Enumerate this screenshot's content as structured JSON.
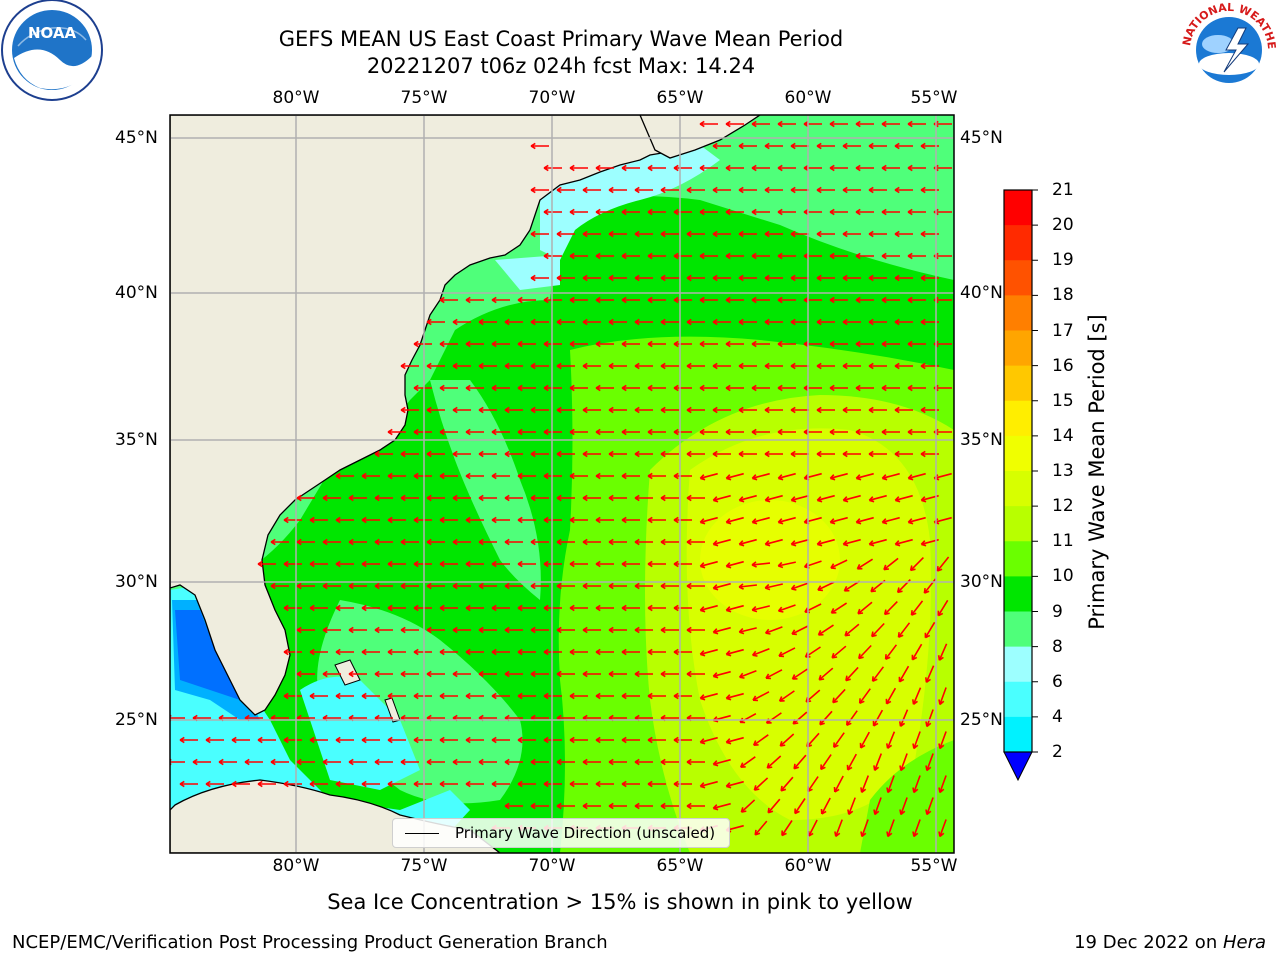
{
  "title_line1": "GEFS MEAN US East Coast Primary Wave Mean Period",
  "title_line2": "20221207 t06z 024h fcst   Max: 14.24",
  "longitude_labels": [
    "80°W",
    "75°W",
    "70°W",
    "65°W",
    "60°W",
    "55°W"
  ],
  "latitude_labels": [
    "45°N",
    "40°N",
    "35°N",
    "30°N",
    "25°N"
  ],
  "colorbar": {
    "label": "Primary Wave Mean Period [s]",
    "ticks": [
      "21",
      "20",
      "19",
      "18",
      "17",
      "16",
      "15",
      "14",
      "13",
      "12",
      "11",
      "10",
      "9",
      "8",
      "6",
      "4",
      "2"
    ],
    "colors": [
      "#ff0000",
      "#ff2a00",
      "#ff5200",
      "#ff7f00",
      "#ffa500",
      "#ffc800",
      "#ffee00",
      "#f0ff00",
      "#d7ff00",
      "#b8ff00",
      "#6aff00",
      "#00e600",
      "#4fff7a",
      "#9dffff",
      "#4affff",
      "#00f2ff",
      "#00b0ff",
      "#0070ff",
      "#0000ff"
    ]
  },
  "legend": {
    "label": "Primary Wave Direction (unscaled)"
  },
  "footnote": "Sea Ice Concentration > 15% is shown in pink to yellow",
  "credit": "NCEP/EMC/Verification Post Processing Product Generation Branch",
  "date_text": "19 Dec 2022 on ",
  "date_machine": "Hera",
  "logos": {
    "noaa": "NOAA",
    "nws": "NATIONAL WEATHER SERVICE"
  },
  "map_colors": {
    "land": "#efedde",
    "coast": "#000000",
    "grid": "#b0b0b0",
    "arrow": "#ff0000"
  }
}
